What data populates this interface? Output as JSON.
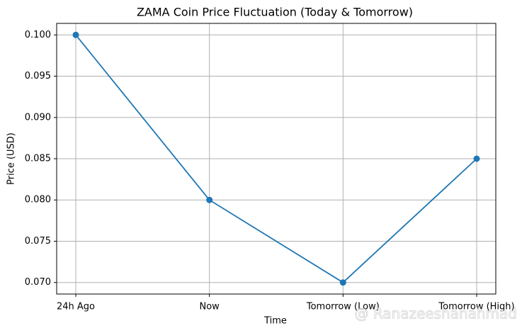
{
  "chart_data": {
    "type": "line",
    "title": "ZAMA Coin Price Fluctuation (Today & Tomorrow)",
    "xlabel": "Time",
    "ylabel": "Price (USD)",
    "categories": [
      "24h Ago",
      "Now",
      "Tomorrow (Low)",
      "Tomorrow (High)"
    ],
    "series": [
      {
        "name": "ZAMA",
        "color": "#1f77b4",
        "values": [
          0.1,
          0.08,
          0.07,
          0.085
        ]
      }
    ],
    "ylim": [
      0.0686,
      0.1014
    ],
    "yticks": [
      {
        "value": 0.07,
        "label": "0.070"
      },
      0.075,
      {
        "value": 0.08,
        "label": "0.080"
      },
      0.085,
      {
        "value": 0.09,
        "label": "0.090"
      },
      0.095,
      {
        "value": 0.1,
        "label": "0.100"
      }
    ],
    "grid": true,
    "watermark": "@ Ranazeeshanahmad"
  }
}
